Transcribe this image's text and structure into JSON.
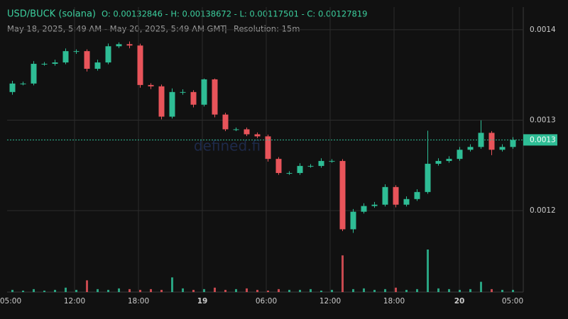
{
  "chart_data": {
    "type": "candlestick",
    "title": "USD/BUCK (solana)",
    "ohlc_summary": "O: 0.00132846 - H: 0.00138672 - L: 0.00117501 - C: 0.00127819",
    "date_range": "May 18, 2025, 5:49 AM - May 20, 2025, 5:49 AM GMT",
    "separator": "|",
    "resolution": "Resolution: 15m",
    "watermark": "defined.fi",
    "up_color": "#2ebd95",
    "down_color": "#e8545a",
    "grid": true,
    "ylim": [
      0.00111,
      0.001425
    ],
    "yticks": [
      0.0012,
      0.0013,
      0.0014
    ],
    "last_price": {
      "value": 0.00127819,
      "label": "0.0013"
    },
    "xtick_labels": [
      "05:00",
      "12:00",
      "18:00",
      "19",
      "06:00",
      "12:00",
      "18:00",
      "20",
      "05:00"
    ],
    "open": [
      0.0013311,
      0.0013405,
      0.0013405,
      0.0013623,
      0.0013623,
      0.0013638,
      0.0013763,
      0.0013763,
      0.0013568,
      0.0013638,
      0.0013817,
      0.001384,
      0.0013825,
      0.0013389,
      0.0013374,
      0.0013039,
      0.0013311,
      0.0013311,
      0.0013171,
      0.0013451,
      0.0013062,
      0.0012899,
      0.0012899,
      0.0012844,
      0.0012821,
      0.0012572,
      0.0012416,
      0.0012416,
      0.0012494,
      0.0012494,
      0.0012549,
      0.0012549,
      0.0011794,
      0.0011988,
      0.0012051,
      0.0012066,
      0.0012261,
      0.0012066,
      0.0012128,
      0.0012206,
      0.0012518,
      0.0012549,
      0.0012572,
      0.0012673,
      0.0012704,
      0.001286,
      0.0012673,
      0.0012704
    ],
    "high": [
      0.0013435,
      0.0013425,
      0.0013653,
      0.0013643,
      0.0013668,
      0.0013793,
      0.0013783,
      0.0013783,
      0.0013668,
      0.0013847,
      0.001386,
      0.001387,
      0.0013845,
      0.0013409,
      0.0013394,
      0.0013351,
      0.0013341,
      0.0013331,
      0.0013461,
      0.0013461,
      0.0013082,
      0.0012919,
      0.0012919,
      0.0012864,
      0.0012841,
      0.0012592,
      0.0012436,
      0.0012524,
      0.0012514,
      0.0012579,
      0.0012569,
      0.0012569,
      0.0012018,
      0.0012081,
      0.0012096,
      0.0012291,
      0.0012281,
      0.0012158,
      0.0012236,
      0.0012884,
      0.0012579,
      0.0012602,
      0.0012703,
      0.0012734,
      0.0012998,
      0.001288,
      0.0012734,
      0.0012812
    ],
    "low": [
      0.0013281,
      0.0013385,
      0.0013385,
      0.0013603,
      0.0013603,
      0.0013618,
      0.0013733,
      0.0013538,
      0.0013548,
      0.0013618,
      0.0013797,
      0.0013795,
      0.0013359,
      0.0013344,
      0.0013009,
      0.0013019,
      0.0013281,
      0.0013141,
      0.0013151,
      0.0013032,
      0.0012879,
      0.0012879,
      0.0012824,
      0.0012801,
      0.0012542,
      0.0012396,
      0.0012396,
      0.0012396,
      0.0012474,
      0.0012474,
      0.0012529,
      0.0011774,
      0.0011754,
      0.0011968,
      0.0012031,
      0.0012046,
      0.0012036,
      0.0012046,
      0.0012108,
      0.0012186,
      0.0012498,
      0.0012529,
      0.0012552,
      0.0012653,
      0.0012684,
      0.0012613,
      0.0012653,
      0.0012684
    ],
    "close": [
      0.0013405,
      0.0013405,
      0.0013623,
      0.0013623,
      0.0013638,
      0.0013763,
      0.0013763,
      0.0013568,
      0.0013638,
      0.0013817,
      0.001384,
      0.0013825,
      0.0013389,
      0.0013374,
      0.0013039,
      0.0013311,
      0.0013311,
      0.0013171,
      0.0013451,
      0.0013062,
      0.0012899,
      0.0012899,
      0.0012844,
      0.0012821,
      0.0012572,
      0.0012416,
      0.0012416,
      0.0012494,
      0.0012494,
      0.0012549,
      0.0012549,
      0.0011794,
      0.0011988,
      0.0012051,
      0.0012066,
      0.0012261,
      0.0012066,
      0.0012128,
      0.0012206,
      0.0012518,
      0.0012549,
      0.0012572,
      0.0012673,
      0.0012704,
      0.001286,
      0.0012673,
      0.0012704,
      0.00127819
    ],
    "volume": [
      3,
      2,
      4,
      2,
      3,
      6,
      3,
      16,
      4,
      3,
      5,
      4,
      3,
      4,
      3,
      20,
      5,
      3,
      4,
      6,
      3,
      4,
      5,
      3,
      2,
      4,
      3,
      3,
      4,
      2,
      3,
      50,
      4,
      5,
      3,
      4,
      6,
      3,
      4,
      58,
      5,
      4,
      3,
      4,
      14,
      4,
      3,
      3
    ]
  }
}
